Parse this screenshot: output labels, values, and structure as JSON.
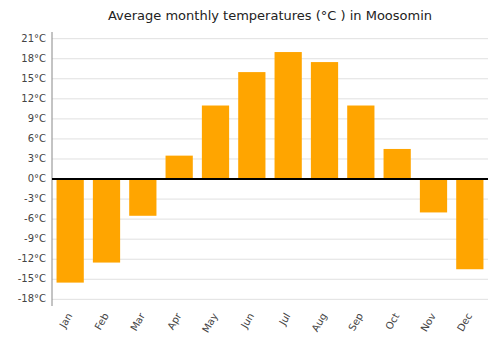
{
  "chart_data": {
    "type": "bar",
    "title": "Average monthly temperatures (°C ) in Moosomin",
    "categories": [
      "Jan",
      "Feb",
      "Mar",
      "Apr",
      "May",
      "Jun",
      "Jul",
      "Aug",
      "Sep",
      "Oct",
      "Nov",
      "Dec"
    ],
    "values": [
      -15.5,
      -12.5,
      -5.5,
      3.5,
      11.0,
      16.0,
      19.0,
      17.5,
      11.0,
      4.5,
      -5.0,
      -13.5
    ],
    "color": "#FFA500",
    "ylim": [
      -19,
      22
    ],
    "yticks": [
      {
        "value": -18,
        "label": "-18°C"
      },
      {
        "value": -15,
        "label": "-15°C"
      },
      {
        "value": -12,
        "label": "-12°C"
      },
      {
        "value": -9,
        "label": "-9°C"
      },
      {
        "value": -6,
        "label": "-6°C"
      },
      {
        "value": -3,
        "label": "-3°C"
      },
      {
        "value": 0,
        "label": "0°C"
      },
      {
        "value": 3,
        "label": "3°C"
      },
      {
        "value": 6,
        "label": "6°C"
      },
      {
        "value": 9,
        "label": "9°C"
      },
      {
        "value": 12,
        "label": "12°C"
      },
      {
        "value": 15,
        "label": "15°C"
      },
      {
        "value": 18,
        "label": "18°C"
      },
      {
        "value": 21,
        "label": "21°C"
      }
    ],
    "grid": true
  }
}
